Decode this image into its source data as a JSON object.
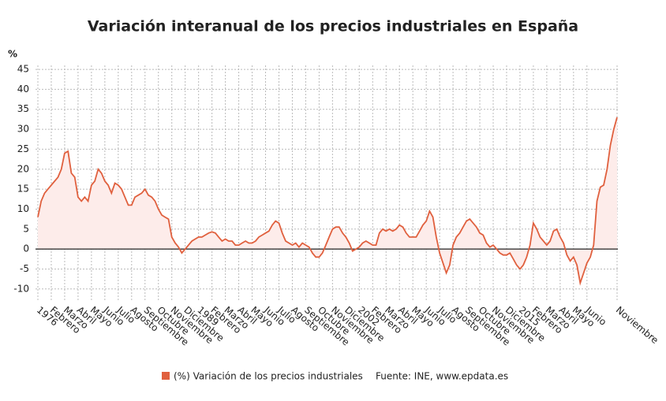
{
  "chart_data": {
    "type": "line",
    "title": "Variación interanual de los precios industriales en España",
    "y_label": "%",
    "source": "Fuente: INE, www.epdata.es",
    "categories": [
      "1976",
      null,
      null,
      null,
      "Febrero",
      null,
      null,
      null,
      "Marzo",
      null,
      null,
      null,
      "Abril",
      null,
      null,
      null,
      "Mayo",
      null,
      null,
      null,
      "Junio",
      null,
      null,
      null,
      "Julio",
      null,
      null,
      null,
      "Agosto",
      null,
      null,
      null,
      "Septiembre",
      null,
      null,
      null,
      "Octubre",
      null,
      null,
      null,
      "Noviembre",
      null,
      null,
      null,
      "Diciembre",
      null,
      null,
      null,
      "1989",
      null,
      null,
      null,
      "Febrero",
      null,
      null,
      null,
      "Marzo",
      null,
      null,
      null,
      "Abril",
      null,
      null,
      null,
      "Mayo",
      null,
      null,
      null,
      "Junio",
      null,
      null,
      null,
      "Julio",
      null,
      null,
      null,
      "Agosto",
      null,
      null,
      null,
      "Septiembre",
      null,
      null,
      null,
      "Octubre",
      null,
      null,
      null,
      "Noviembre",
      null,
      null,
      null,
      "Diciembre",
      null,
      null,
      null,
      "2002",
      null,
      null,
      null,
      "Febrero",
      null,
      null,
      null,
      "Marzo",
      null,
      null,
      null,
      "Abril",
      null,
      null,
      null,
      "Mayo",
      null,
      null,
      null,
      "Junio",
      null,
      null,
      null,
      "Julio",
      null,
      null,
      null,
      "Agosto",
      null,
      null,
      null,
      "Septiembre",
      null,
      null,
      null,
      "Octubre",
      null,
      null,
      null,
      "Noviembre",
      null,
      null,
      null,
      "Diciembre",
      null,
      null,
      null,
      "2015",
      null,
      null,
      null,
      "Febrero",
      null,
      null,
      null,
      "Marzo",
      null,
      null,
      null,
      "Abril",
      null,
      null,
      null,
      "Mayo",
      null,
      null,
      null,
      "Junio",
      null,
      null,
      null,
      null,
      null,
      null,
      null,
      null,
      "Noviembre"
    ],
    "series": [
      {
        "name": "(%) Variación de los precios industriales",
        "color": "#e0603e",
        "fill": "#fdecea",
        "values": [
          8,
          12,
          14,
          15,
          16,
          17,
          18,
          20,
          24,
          24.5,
          19,
          18,
          13,
          12,
          13,
          12,
          16,
          17,
          20,
          19,
          17,
          16,
          14,
          16.5,
          16,
          15,
          13,
          11,
          11,
          13,
          13.5,
          14,
          15,
          13.5,
          13,
          12,
          10,
          8.5,
          8,
          7.5,
          3,
          1.5,
          0.5,
          -1,
          0,
          1,
          2,
          2.5,
          3,
          3,
          3.5,
          4,
          4.3,
          4,
          3,
          2,
          2.5,
          2,
          2,
          1,
          1,
          1.5,
          2,
          1.5,
          1.5,
          2,
          3,
          3.5,
          4,
          4.5,
          6,
          7,
          6.5,
          4,
          2,
          1.5,
          1,
          1.5,
          0.5,
          1.5,
          1,
          0.5,
          -1,
          -2,
          -2,
          -1,
          1,
          3,
          5,
          5.5,
          5.5,
          4,
          3,
          1.5,
          -0.5,
          0,
          0.5,
          1.5,
          2,
          1.5,
          1,
          1,
          4,
          5,
          4.5,
          5,
          4.5,
          5,
          6,
          5.5,
          4,
          3,
          3,
          3,
          4.5,
          6,
          7,
          9.5,
          8,
          3,
          -1,
          -3.5,
          -6,
          -4,
          1,
          3,
          4,
          5.5,
          7,
          7.5,
          6.5,
          5.5,
          4,
          3.5,
          1.5,
          0.5,
          1,
          0,
          -1,
          -1.5,
          -1.5,
          -1,
          -2.5,
          -4,
          -5,
          -4,
          -2,
          1,
          6.5,
          5,
          3,
          2,
          1,
          2,
          4.5,
          5,
          3,
          1.5,
          -1.5,
          -3,
          -2,
          -4,
          -8.5,
          -6,
          -3.5,
          -2,
          1,
          12,
          15.5,
          16,
          20,
          26,
          30,
          33
        ]
      }
    ],
    "ylim": [
      -13,
      46
    ],
    "yticks": [
      -10,
      -5,
      0,
      5,
      10,
      15,
      20,
      25,
      30,
      35,
      40,
      45
    ],
    "grid": true
  }
}
